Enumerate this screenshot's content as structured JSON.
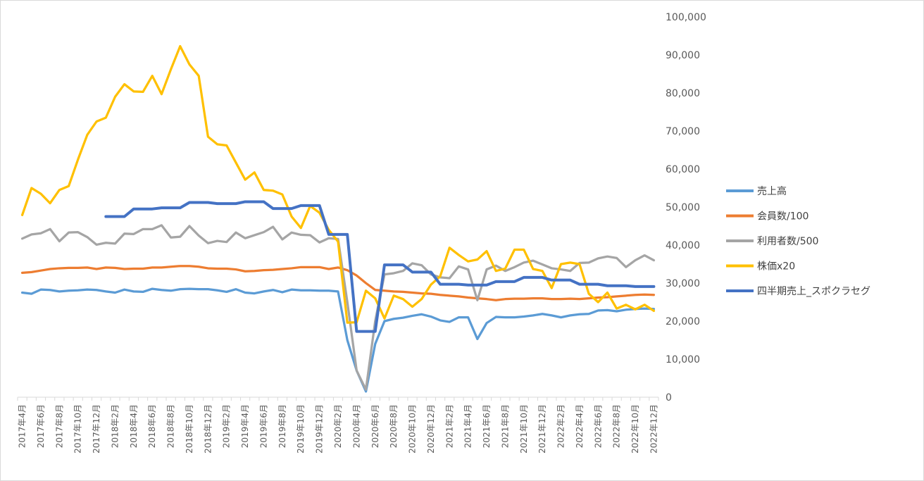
{
  "chart_data": {
    "type": "line",
    "title": "",
    "xlabel": "",
    "ylabel": "",
    "ylim": [
      0,
      100000
    ],
    "yticks": [
      0,
      10000,
      20000,
      30000,
      40000,
      50000,
      60000,
      70000,
      80000,
      90000,
      100000
    ],
    "ytick_labels": [
      "0",
      "10,000",
      "20,000",
      "30,000",
      "40,000",
      "50,000",
      "60,000",
      "70,000",
      "80,000",
      "90,000",
      "100,000"
    ],
    "y_axis_side": "right",
    "grid": false,
    "legend_position": "right",
    "x": [
      "2017年4月",
      "2017年5月",
      "2017年6月",
      "2017年7月",
      "2017年8月",
      "2017年9月",
      "2017年10月",
      "2017年11月",
      "2017年12月",
      "2018年1月",
      "2018年2月",
      "2018年3月",
      "2018年4月",
      "2018年5月",
      "2018年6月",
      "2018年7月",
      "2018年8月",
      "2018年9月",
      "2018年10月",
      "2018年11月",
      "2018年12月",
      "2019年1月",
      "2019年2月",
      "2019年3月",
      "2019年4月",
      "2019年5月",
      "2019年6月",
      "2019年7月",
      "2019年8月",
      "2019年9月",
      "2019年10月",
      "2019年11月",
      "2019年12月",
      "2020年1月",
      "2020年2月",
      "2020年3月",
      "2020年4月",
      "2020年5月",
      "2020年6月",
      "2020年7月",
      "2020年8月",
      "2020年9月",
      "2020年10月",
      "2020年11月",
      "2020年12月",
      "2021年1月",
      "2021年2月",
      "2021年3月",
      "2021年4月",
      "2021年5月",
      "2021年6月",
      "2021年7月",
      "2021年8月",
      "2021年9月",
      "2021年10月",
      "2021年11月",
      "2021年12月",
      "2022年1月",
      "2022年2月",
      "2022年3月",
      "2022年4月",
      "2022年5月",
      "2022年6月",
      "2022年7月",
      "2022年8月",
      "2022年9月",
      "2022年10月",
      "2022年11月",
      "2022年12月"
    ],
    "x_tick_labels": [
      "2017年4月",
      "2017年6月",
      "2017年8月",
      "2017年10月",
      "2017年12月",
      "2018年2月",
      "2018年4月",
      "2018年6月",
      "2018年8月",
      "2018年10月",
      "2018年12月",
      "2019年2月",
      "2019年4月",
      "2019年6月",
      "2019年8月",
      "2019年10月",
      "2019年12月",
      "2020年2月",
      "2020年4月",
      "2020年6月",
      "2020年8月",
      "2020年10月",
      "2020年12月",
      "2021年2月",
      "2021年4月",
      "2021年6月",
      "2021年8月",
      "2021年10月",
      "2021年12月",
      "2022年2月",
      "2022年4月",
      "2022年6月",
      "2022年8月",
      "2022年10月",
      "2022年12月"
    ],
    "series": [
      {
        "name": "売上高",
        "color": "#5B9BD5",
        "values": [
          27500,
          27200,
          28300,
          28200,
          27800,
          28000,
          28100,
          28300,
          28200,
          27800,
          27500,
          28300,
          27800,
          27700,
          28500,
          28200,
          28000,
          28400,
          28500,
          28400,
          28400,
          28100,
          27700,
          28400,
          27500,
          27300,
          27800,
          28200,
          27600,
          28300,
          28100,
          28100,
          28000,
          28000,
          27800,
          15000,
          7000,
          1500,
          14000,
          20000,
          20600,
          20900,
          21400,
          21800,
          21200,
          20200,
          19800,
          21000,
          21000,
          15300,
          19500,
          21100,
          21000,
          21000,
          21200,
          21500,
          21900,
          21500,
          21000,
          21500,
          21800,
          21900,
          22800,
          22900,
          22600,
          23000,
          23200,
          23300,
          23200
        ]
      },
      {
        "name": "会員数/100",
        "color": "#ED7D31",
        "values": [
          32700,
          32900,
          33300,
          33700,
          33900,
          34000,
          34000,
          34100,
          33700,
          34100,
          34000,
          33700,
          33800,
          33800,
          34100,
          34100,
          34300,
          34500,
          34500,
          34300,
          33900,
          33800,
          33800,
          33600,
          33100,
          33200,
          33400,
          33500,
          33700,
          33900,
          34200,
          34200,
          34200,
          33700,
          34100,
          33400,
          32000,
          30000,
          28200,
          28000,
          27800,
          27700,
          27500,
          27300,
          27200,
          26900,
          26700,
          26500,
          26200,
          26000,
          25800,
          25500,
          25800,
          25900,
          25900,
          26000,
          26000,
          25800,
          25800,
          25900,
          25800,
          26000,
          26200,
          26300,
          26500,
          26700,
          26900,
          27000,
          26900
        ]
      },
      {
        "name": "利用者数/500",
        "color": "#A5A5A5",
        "values": [
          41700,
          42800,
          43100,
          44200,
          41000,
          43300,
          43400,
          42100,
          40100,
          40600,
          40400,
          43000,
          42900,
          44200,
          44200,
          45200,
          42000,
          42200,
          45000,
          42500,
          40500,
          41100,
          40800,
          43300,
          41800,
          42600,
          43400,
          44800,
          41500,
          43300,
          42700,
          42600,
          40700,
          41800,
          41600,
          25000,
          7000,
          2000,
          20000,
          32300,
          32600,
          33200,
          35200,
          34700,
          32300,
          31500,
          31300,
          34400,
          33600,
          25500,
          33600,
          34600,
          33200,
          34200,
          35400,
          35900,
          34900,
          33900,
          33600,
          33200,
          35300,
          35400,
          36500,
          37000,
          36600,
          34200,
          36000,
          37300,
          36000
        ]
      },
      {
        "name": "株価x20",
        "color": "#FFC000",
        "values": [
          47900,
          55000,
          53500,
          51000,
          54500,
          55500,
          62500,
          69000,
          72500,
          73500,
          79000,
          82300,
          80400,
          80300,
          84500,
          79700,
          86200,
          92300,
          87500,
          84500,
          68500,
          66500,
          66200,
          61700,
          57200,
          59100,
          54500,
          54300,
          53300,
          47500,
          44500,
          50300,
          48500,
          44000,
          40900,
          19600,
          19700,
          28000,
          26000,
          20700,
          26700,
          25800,
          23800,
          25800,
          29600,
          31800,
          39300,
          37400,
          35700,
          36200,
          38400,
          33200,
          33800,
          38800,
          38800,
          33700,
          33200,
          28700,
          35000,
          35400,
          35000,
          27200,
          25000,
          27500,
          23300,
          24300,
          23100,
          24300,
          22700
        ]
      },
      {
        "name": "四半期売上_スポクラセグ",
        "color": "#4472C4",
        "values": [
          null,
          null,
          null,
          null,
          null,
          null,
          null,
          null,
          null,
          47500,
          47500,
          47500,
          49500,
          49500,
          49500,
          49800,
          49800,
          49800,
          51200,
          51200,
          51200,
          50900,
          50900,
          50900,
          51400,
          51400,
          51400,
          49600,
          49600,
          49600,
          50400,
          50400,
          50400,
          42800,
          42800,
          42800,
          17300,
          17300,
          17300,
          34800,
          34800,
          34800,
          32900,
          32900,
          32900,
          29700,
          29700,
          29700,
          29500,
          29500,
          29500,
          30400,
          30400,
          30400,
          31500,
          31500,
          31500,
          30800,
          30800,
          30800,
          29700,
          29700,
          29700,
          29300,
          29300,
          29300,
          29100,
          29100,
          29100
        ]
      }
    ]
  }
}
